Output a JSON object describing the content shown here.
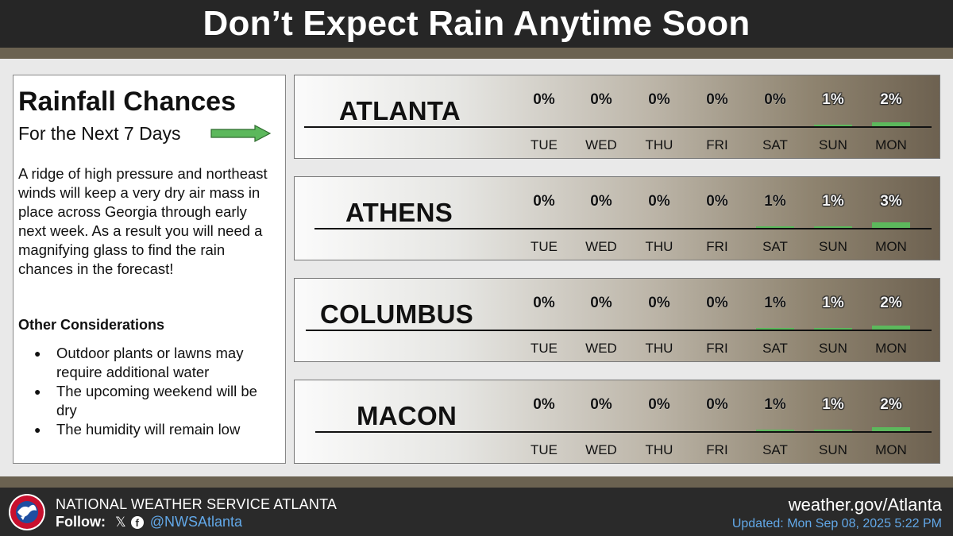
{
  "header": {
    "title": "Don’t Expect Rain Anytime Soon"
  },
  "left_panel": {
    "title": "Rainfall Chances",
    "subtitle": "For the Next 7 Days",
    "body": "A ridge of high pressure and northeast winds will keep a very dry air mass in place across Georgia through early next week. As a result you will need a magnifying glass to find the rain chances in the forecast!",
    "other_heading": "Other Considerations",
    "bullets": [
      "Outdoor plants or lawns may require additional water",
      "The upcoming weekend will be dry",
      "The humidity will remain low"
    ]
  },
  "chart_data": {
    "type": "bar",
    "title": "Rainfall Chances",
    "subtitle": "For the Next 7 Days",
    "categories": [
      "TUE",
      "WED",
      "THU",
      "FRI",
      "SAT",
      "SUN",
      "MON"
    ],
    "unit": "%",
    "series": [
      {
        "name": "ATLANTA",
        "values": [
          0,
          0,
          0,
          0,
          0,
          1,
          2
        ]
      },
      {
        "name": "ATHENS",
        "values": [
          0,
          0,
          0,
          0,
          1,
          1,
          3
        ]
      },
      {
        "name": "COLUMBUS",
        "values": [
          0,
          0,
          0,
          0,
          1,
          1,
          2
        ]
      },
      {
        "name": "MACON",
        "values": [
          0,
          0,
          0,
          0,
          1,
          1,
          2
        ]
      }
    ],
    "bar_color": "#5cb85c",
    "ylim": [
      0,
      100
    ]
  },
  "footer": {
    "org": "NATIONAL WEATHER SERVICE ATLANTA",
    "follow_label": "Follow:",
    "x_glyph": "𝕏",
    "fb_glyph": "f",
    "handle": "@NWSAtlanta",
    "site": "weather.gov/Atlanta",
    "updated": "Updated: Mon Sep 08, 2025 5:22 PM"
  },
  "colors": {
    "header_bg": "#262626",
    "band": "#6b6251",
    "accent_blue": "#62a8e8",
    "arrow_green": "#5cb85c"
  }
}
